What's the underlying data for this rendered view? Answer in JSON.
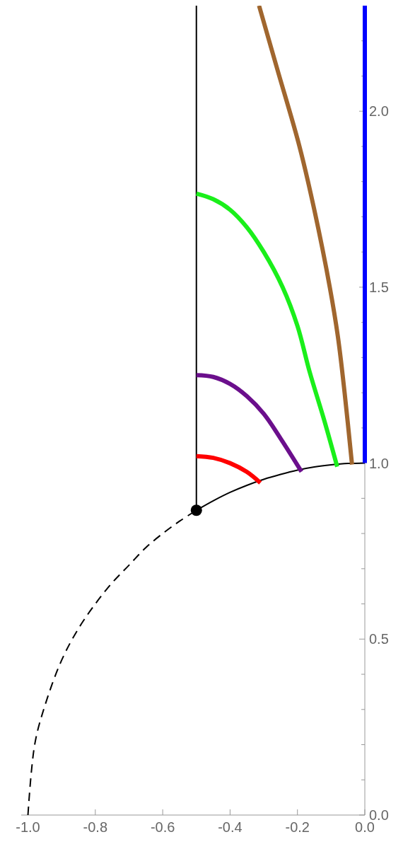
{
  "chart_data": {
    "type": "line",
    "xlim": [
      -1.02,
      0
    ],
    "ylim": [
      0,
      2.3
    ],
    "xticks": [
      {
        "value": -1,
        "label": "-1.0"
      },
      {
        "value": -0.8,
        "label": "-0.8"
      },
      {
        "value": -0.6,
        "label": "-0.6"
      },
      {
        "value": -0.4,
        "label": "-0.4"
      },
      {
        "value": -0.2,
        "label": "-0.2"
      },
      {
        "value": 0,
        "label": "0.0"
      }
    ],
    "yticks": [
      {
        "value": 0,
        "label": "0.0"
      },
      {
        "value": 0.1,
        "label": null
      },
      {
        "value": 0.2,
        "label": null
      },
      {
        "value": 0.3,
        "label": null
      },
      {
        "value": 0.4,
        "label": null
      },
      {
        "value": 0.5,
        "label": "0.5"
      },
      {
        "value": 0.6,
        "label": null
      },
      {
        "value": 0.7,
        "label": null
      },
      {
        "value": 0.8,
        "label": null
      },
      {
        "value": 0.9,
        "label": null
      },
      {
        "value": 1,
        "label": "1.0"
      },
      {
        "value": 1.1,
        "label": null
      },
      {
        "value": 1.2,
        "label": null
      },
      {
        "value": 1.3,
        "label": null
      },
      {
        "value": 1.4,
        "label": null
      },
      {
        "value": 1.5,
        "label": "1.5"
      },
      {
        "value": 1.6,
        "label": null
      },
      {
        "value": 1.7,
        "label": null
      },
      {
        "value": 1.8,
        "label": null
      },
      {
        "value": 1.9,
        "label": null
      },
      {
        "value": 2,
        "label": "2.0"
      },
      {
        "value": 2.1,
        "label": null
      },
      {
        "value": 2.2,
        "label": null
      }
    ],
    "grid": false,
    "series": [
      {
        "color": "#000000",
        "line_style": "dashed",
        "x": [
          -1,
          -0.98,
          -0.95,
          -0.9,
          -0.85,
          -0.8,
          -0.75,
          -0.7,
          -0.65,
          -0.6,
          -0.55,
          -0.5
        ],
        "values": [
          0,
          0.2,
          0.31,
          0.44,
          0.53,
          0.6,
          0.66,
          0.71,
          0.76,
          0.8,
          0.835,
          0.866
        ]
      },
      {
        "color": "#000000",
        "line_style": "solid",
        "x": [
          -0.5,
          -0.45,
          -0.4,
          -0.35,
          -0.3,
          -0.25,
          -0.2,
          -0.15,
          -0.1,
          -0.05,
          0
        ],
        "values": [
          0.866,
          0.893,
          0.917,
          0.937,
          0.954,
          0.968,
          0.98,
          0.989,
          0.995,
          0.999,
          1
        ]
      },
      {
        "color": "#000000",
        "line_style": "solid",
        "x": [
          -0.5,
          -0.5
        ],
        "values": [
          0.866,
          2.3
        ]
      },
      {
        "color": "#ff0000",
        "line_style": "solid",
        "x": [
          -0.5,
          -0.45,
          -0.4,
          -0.35,
          -0.31
        ],
        "values": [
          1.02,
          1.015,
          1.0,
          0.975,
          0.944
        ]
      },
      {
        "color": "#6b0f8c",
        "line_style": "solid",
        "x": [
          -0.5,
          -0.45,
          -0.4,
          -0.35,
          -0.3,
          -0.25,
          -0.188
        ],
        "values": [
          1.25,
          1.245,
          1.225,
          1.19,
          1.14,
          1.07,
          0.976
        ]
      },
      {
        "color": "#1aef1a",
        "line_style": "solid",
        "x": [
          -0.5,
          -0.45,
          -0.4,
          -0.35,
          -0.3,
          -0.244,
          -0.2,
          -0.164,
          -0.12,
          -0.082
        ],
        "values": [
          1.766,
          1.75,
          1.72,
          1.67,
          1.6,
          1.5,
          1.39,
          1.26,
          1.12,
          0.99
        ]
      },
      {
        "color": "#a0662e",
        "line_style": "solid",
        "x": [
          -0.314,
          -0.26,
          -0.194,
          -0.15,
          -0.104,
          -0.08,
          -0.06,
          -0.038
        ],
        "values": [
          2.3,
          2.12,
          1.9,
          1.72,
          1.5,
          1.36,
          1.2,
          0.996
        ]
      },
      {
        "color": "#0000ff",
        "line_style": "solid",
        "x": [
          0,
          0
        ],
        "values": [
          1,
          2.3
        ]
      },
      {
        "type": "scatter",
        "marker": "circle",
        "color": "#000000",
        "x": [
          -0.5
        ],
        "values": [
          0.866
        ]
      }
    ]
  }
}
